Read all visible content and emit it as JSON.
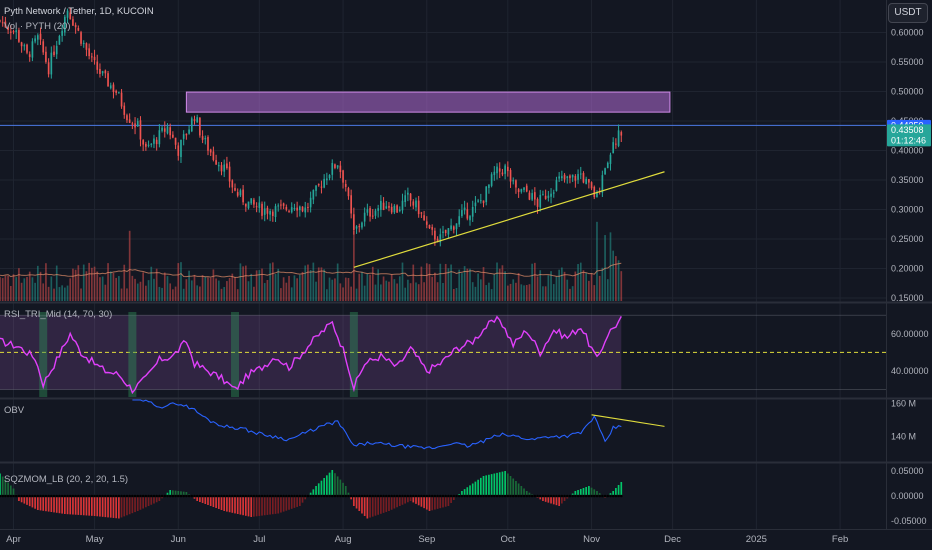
{
  "header": {
    "symbol": "Pyth Network / Tether",
    "interval": "1D",
    "exchange": "KUCOIN",
    "volume_label": "Vol · PYTH (20)"
  },
  "currency_button": "USDT",
  "price_tags": {
    "current_price": "0.43508",
    "countdown": "01:12:46",
    "line_price": "0.44250"
  },
  "indicators": {
    "rsi_label": "RSI_TRI_Mid (14, 70, 30)",
    "obv_label": "OBV",
    "sqz_label": "SQZMOM_LB (20, 2, 20, 1.5)"
  },
  "colors": {
    "background": "#131722",
    "up": "#26a69a",
    "down": "#ef5350",
    "rsi": "#e040fb",
    "obv": "#2962ff",
    "trendline": "#e0dc3c",
    "horizontal_line": "#4c7ae6",
    "zone_fill": "#b36bd6"
  },
  "chart_data": [
    {
      "type": "candlestick",
      "title": "Pyth Network / Tether, 1D, KUCOIN",
      "price_ticks": [
        "0.60000",
        "0.55000",
        "0.50000",
        "0.45000",
        "0.40000",
        "0.35000",
        "0.30000",
        "0.25000",
        "0.20000",
        "0.15000"
      ],
      "price_tick_values": [
        0.6,
        0.55,
        0.5,
        0.45,
        0.4,
        0.35,
        0.3,
        0.25,
        0.2,
        0.15
      ],
      "ylim": [
        0.145,
        0.655
      ],
      "date_ticks": [
        "Apr",
        "May",
        "Jun",
        "Jul",
        "Aug",
        "Sep",
        "Oct",
        "Nov",
        "Dec",
        "2025",
        "Feb"
      ],
      "date_range": [
        "2024-03-27",
        "2025-02-18"
      ],
      "last_candle_date": "2024-11-12",
      "close_path": [
        [
          "2024-03-27",
          0.62
        ],
        [
          "2024-04-02",
          0.6
        ],
        [
          "2024-04-06",
          0.56
        ],
        [
          "2024-04-10",
          0.59
        ],
        [
          "2024-04-14",
          0.54
        ],
        [
          "2024-04-18",
          0.6
        ],
        [
          "2024-04-21",
          0.64
        ],
        [
          "2024-04-25",
          0.6
        ],
        [
          "2024-04-30",
          0.55
        ],
        [
          "2024-05-05",
          0.52
        ],
        [
          "2024-05-09",
          0.5
        ],
        [
          "2024-05-13",
          0.46
        ],
        [
          "2024-05-17",
          0.44
        ],
        [
          "2024-05-20",
          0.4
        ],
        [
          "2024-05-24",
          0.42
        ],
        [
          "2024-05-28",
          0.44
        ],
        [
          "2024-06-01",
          0.4
        ],
        [
          "2024-06-04",
          0.43
        ],
        [
          "2024-06-07",
          0.46
        ],
        [
          "2024-06-10",
          0.42
        ],
        [
          "2024-06-14",
          0.39
        ],
        [
          "2024-06-18",
          0.37
        ],
        [
          "2024-06-22",
          0.33
        ],
        [
          "2024-06-27",
          0.31
        ],
        [
          "2024-07-02",
          0.3
        ],
        [
          "2024-07-06",
          0.3
        ],
        [
          "2024-07-10",
          0.3
        ],
        [
          "2024-07-14",
          0.31
        ],
        [
          "2024-07-18",
          0.3
        ],
        [
          "2024-07-22",
          0.33
        ],
        [
          "2024-07-26",
          0.36
        ],
        [
          "2024-07-30",
          0.38
        ],
        [
          "2024-08-02",
          0.34
        ],
        [
          "2024-08-05",
          0.26
        ],
        [
          "2024-08-09",
          0.29
        ],
        [
          "2024-08-13",
          0.3
        ],
        [
          "2024-08-17",
          0.31
        ],
        [
          "2024-08-21",
          0.3
        ],
        [
          "2024-08-25",
          0.32
        ],
        [
          "2024-08-29",
          0.3
        ],
        [
          "2024-09-02",
          0.26
        ],
        [
          "2024-09-06",
          0.25
        ],
        [
          "2024-09-10",
          0.27
        ],
        [
          "2024-09-14",
          0.29
        ],
        [
          "2024-09-18",
          0.3
        ],
        [
          "2024-09-22",
          0.32
        ],
        [
          "2024-09-26",
          0.36
        ],
        [
          "2024-09-30",
          0.37
        ],
        [
          "2024-10-04",
          0.33
        ],
        [
          "2024-10-08",
          0.33
        ],
        [
          "2024-10-12",
          0.31
        ],
        [
          "2024-10-16",
          0.33
        ],
        [
          "2024-10-20",
          0.35
        ],
        [
          "2024-10-24",
          0.35
        ],
        [
          "2024-10-28",
          0.36
        ],
        [
          "2024-11-01",
          0.33
        ],
        [
          "2024-11-03",
          0.32
        ],
        [
          "2024-11-05",
          0.36
        ],
        [
          "2024-11-08",
          0.4
        ],
        [
          "2024-11-12",
          0.435
        ]
      ],
      "resistance_zone": {
        "from_date": "2024-06-04",
        "to_date": "2024-11-30",
        "price_low": 0.465,
        "price_high": 0.499
      },
      "horizontal_line": 0.4425,
      "trendline": [
        [
          "2024-08-05",
          0.202
        ],
        [
          "2024-11-28",
          0.364
        ]
      ]
    },
    {
      "type": "bar",
      "name": "Vol · PYTH (20)",
      "description_note": "volume histogram overlay with 20-period moving average",
      "spikes": [
        [
          "2024-05-14",
          "high"
        ],
        [
          "2024-08-05",
          "high"
        ],
        [
          "2024-11-03",
          "highest"
        ]
      ]
    },
    {
      "type": "line",
      "name": "RSI_TRI_Mid (14, 70, 30)",
      "ticks": [
        "60.00000",
        "40.00000"
      ],
      "tick_values": [
        60,
        40
      ],
      "ylim": [
        26,
        76
      ],
      "band": [
        30,
        70
      ],
      "midline": 50,
      "path": [
        [
          "2024-03-27",
          56
        ],
        [
          "2024-04-03",
          53
        ],
        [
          "2024-04-09",
          47
        ],
        [
          "2024-04-12",
          33
        ],
        [
          "2024-04-17",
          46
        ],
        [
          "2024-04-22",
          60
        ],
        [
          "2024-04-26",
          50
        ],
        [
          "2024-05-01",
          44
        ],
        [
          "2024-05-05",
          40
        ],
        [
          "2024-05-10",
          38
        ],
        [
          "2024-05-15",
          30
        ],
        [
          "2024-05-20",
          36
        ],
        [
          "2024-05-25",
          46
        ],
        [
          "2024-05-30",
          48
        ],
        [
          "2024-06-04",
          56
        ],
        [
          "2024-06-07",
          44
        ],
        [
          "2024-06-12",
          40
        ],
        [
          "2024-06-17",
          36
        ],
        [
          "2024-06-22",
          30
        ],
        [
          "2024-06-27",
          38
        ],
        [
          "2024-07-02",
          42
        ],
        [
          "2024-07-07",
          48
        ],
        [
          "2024-07-12",
          42
        ],
        [
          "2024-07-17",
          50
        ],
        [
          "2024-07-22",
          58
        ],
        [
          "2024-07-28",
          66
        ],
        [
          "2024-08-02",
          48
        ],
        [
          "2024-08-05",
          31
        ],
        [
          "2024-08-09",
          44
        ],
        [
          "2024-08-15",
          48
        ],
        [
          "2024-08-21",
          42
        ],
        [
          "2024-08-26",
          52
        ],
        [
          "2024-09-01",
          40
        ],
        [
          "2024-09-06",
          44
        ],
        [
          "2024-09-12",
          52
        ],
        [
          "2024-09-18",
          56
        ],
        [
          "2024-09-23",
          64
        ],
        [
          "2024-09-28",
          68
        ],
        [
          "2024-10-03",
          54
        ],
        [
          "2024-10-08",
          62
        ],
        [
          "2024-10-13",
          50
        ],
        [
          "2024-10-18",
          62
        ],
        [
          "2024-10-23",
          58
        ],
        [
          "2024-10-28",
          64
        ],
        [
          "2024-11-03",
          46
        ],
        [
          "2024-11-07",
          60
        ],
        [
          "2024-11-12",
          68
        ]
      ]
    },
    {
      "type": "line",
      "name": "OBV",
      "ticks": [
        "160 M",
        "140 M"
      ],
      "tick_values": [
        160,
        140
      ],
      "ylim": [
        125,
        162
      ],
      "path": [
        [
          "2024-05-15",
          165
        ],
        [
          "2024-05-20",
          161
        ],
        [
          "2024-05-26",
          158
        ],
        [
          "2024-06-01",
          160
        ],
        [
          "2024-06-06",
          157
        ],
        [
          "2024-06-12",
          150
        ],
        [
          "2024-06-18",
          146
        ],
        [
          "2024-06-24",
          145
        ],
        [
          "2024-06-30",
          142
        ],
        [
          "2024-07-06",
          140
        ],
        [
          "2024-07-12",
          138
        ],
        [
          "2024-07-18",
          142
        ],
        [
          "2024-07-24",
          146
        ],
        [
          "2024-07-30",
          149
        ],
        [
          "2024-08-05",
          134
        ],
        [
          "2024-08-11",
          136
        ],
        [
          "2024-08-17",
          135
        ],
        [
          "2024-08-23",
          134
        ],
        [
          "2024-08-29",
          133
        ],
        [
          "2024-09-04",
          133
        ],
        [
          "2024-09-10",
          136
        ],
        [
          "2024-09-16",
          134
        ],
        [
          "2024-09-22",
          137
        ],
        [
          "2024-09-28",
          141
        ],
        [
          "2024-10-04",
          140
        ],
        [
          "2024-10-10",
          138
        ],
        [
          "2024-10-16",
          140
        ],
        [
          "2024-10-22",
          140
        ],
        [
          "2024-10-28",
          142
        ],
        [
          "2024-11-02",
          152
        ],
        [
          "2024-11-06",
          136
        ],
        [
          "2024-11-09",
          145
        ],
        [
          "2024-11-12",
          146
        ]
      ],
      "divergence_line": [
        [
          "2024-11-01",
          153
        ],
        [
          "2024-11-28",
          146
        ]
      ]
    },
    {
      "type": "bar",
      "name": "SQZMOM_LB (20, 2, 20, 1.5)",
      "ticks": [
        "0.05000",
        "0.00000",
        "-0.05000"
      ],
      "tick_values": [
        0.05,
        0,
        -0.05
      ],
      "ylim": [
        -0.064,
        0.064
      ],
      "path": [
        [
          "2024-03-27",
          0.045
        ],
        [
          "2024-04-01",
          0.015
        ],
        [
          "2024-04-03",
          -0.01
        ],
        [
          "2024-04-10",
          -0.028
        ],
        [
          "2024-04-20",
          -0.036
        ],
        [
          "2024-05-01",
          -0.04
        ],
        [
          "2024-05-10",
          -0.045
        ],
        [
          "2024-05-17",
          -0.03
        ],
        [
          "2024-05-25",
          -0.01
        ],
        [
          "2024-05-29",
          0.012
        ],
        [
          "2024-06-04",
          0.008
        ],
        [
          "2024-06-08",
          -0.01
        ],
        [
          "2024-06-18",
          -0.03
        ],
        [
          "2024-06-28",
          -0.042
        ],
        [
          "2024-07-08",
          -0.035
        ],
        [
          "2024-07-16",
          -0.02
        ],
        [
          "2024-07-22",
          0.02
        ],
        [
          "2024-07-28",
          0.052
        ],
        [
          "2024-08-02",
          0.02
        ],
        [
          "2024-08-05",
          -0.02
        ],
        [
          "2024-08-10",
          -0.045
        ],
        [
          "2024-08-18",
          -0.03
        ],
        [
          "2024-08-26",
          -0.01
        ],
        [
          "2024-09-02",
          -0.03
        ],
        [
          "2024-09-09",
          -0.02
        ],
        [
          "2024-09-14",
          0.01
        ],
        [
          "2024-09-22",
          0.04
        ],
        [
          "2024-09-30",
          0.05
        ],
        [
          "2024-10-08",
          0.01
        ],
        [
          "2024-10-14",
          -0.01
        ],
        [
          "2024-10-20",
          -0.02
        ],
        [
          "2024-10-26",
          0.01
        ],
        [
          "2024-10-31",
          0.02
        ],
        [
          "2024-11-03",
          0.01
        ],
        [
          "2024-11-06",
          -0.003
        ],
        [
          "2024-11-09",
          0.01
        ],
        [
          "2024-11-12",
          0.028
        ]
      ]
    }
  ]
}
